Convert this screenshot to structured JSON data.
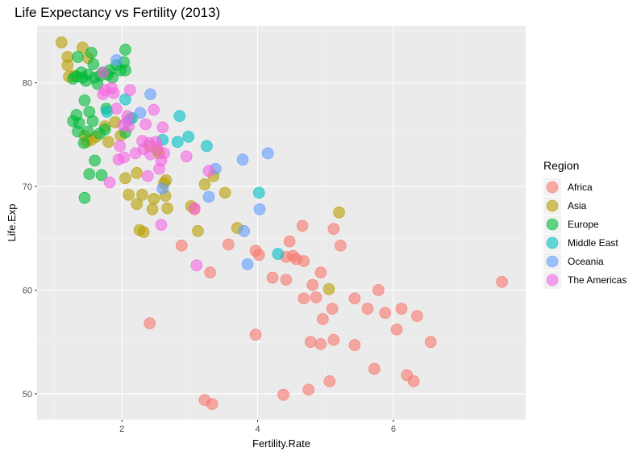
{
  "chart_data": {
    "type": "scatter",
    "title": "Life Expectancy vs Fertility (2013)",
    "xlabel": "Fertility.Rate",
    "ylabel": "Life.Exp",
    "xlim": [
      0.75,
      7.95
    ],
    "ylim": [
      47.5,
      85.5
    ],
    "x_ticks": [
      2,
      4,
      6
    ],
    "x_tick_labels": [
      "2",
      "4",
      "6"
    ],
    "y_ticks": [
      50,
      60,
      70,
      80
    ],
    "y_tick_labels": [
      "50",
      "60",
      "70",
      "80"
    ],
    "grid": true,
    "legend": {
      "title": "Region",
      "placement": "right",
      "entries": [
        "Africa",
        "Asia",
        "Europe",
        "Middle East",
        "Oceania",
        "The Americas"
      ]
    },
    "series": [
      {
        "name": "Africa",
        "color": "#F8766D",
        "points": [
          [
            7.6,
            60.8
          ],
          [
            6.55,
            55.0
          ],
          [
            6.3,
            51.2
          ],
          [
            6.35,
            57.5
          ],
          [
            6.2,
            51.8
          ],
          [
            6.12,
            58.2
          ],
          [
            6.05,
            56.2
          ],
          [
            5.88,
            57.8
          ],
          [
            5.72,
            52.4
          ],
          [
            5.78,
            60.0
          ],
          [
            5.62,
            58.2
          ],
          [
            5.43,
            59.2
          ],
          [
            5.43,
            54.7
          ],
          [
            5.22,
            64.3
          ],
          [
            5.12,
            65.9
          ],
          [
            5.12,
            55.2
          ],
          [
            5.1,
            58.2
          ],
          [
            5.06,
            51.2
          ],
          [
            4.96,
            57.2
          ],
          [
            4.93,
            61.7
          ],
          [
            4.93,
            54.8
          ],
          [
            4.86,
            59.3
          ],
          [
            4.81,
            60.5
          ],
          [
            4.78,
            55.0
          ],
          [
            4.75,
            50.4
          ],
          [
            4.68,
            59.2
          ],
          [
            4.68,
            62.8
          ],
          [
            4.66,
            66.2
          ],
          [
            4.57,
            63.0
          ],
          [
            4.52,
            63.3
          ],
          [
            4.47,
            64.7
          ],
          [
            4.42,
            63.2
          ],
          [
            4.42,
            61.0
          ],
          [
            4.38,
            49.9
          ],
          [
            4.22,
            61.2
          ],
          [
            4.02,
            63.4
          ],
          [
            3.97,
            55.7
          ],
          [
            3.97,
            63.8
          ],
          [
            3.57,
            64.4
          ],
          [
            3.33,
            49.0
          ],
          [
            3.3,
            61.7
          ],
          [
            3.22,
            49.4
          ],
          [
            3.07,
            67.8
          ],
          [
            2.88,
            64.3
          ],
          [
            2.41,
            56.8
          ]
        ]
      },
      {
        "name": "Asia",
        "color": "#B79F00",
        "points": [
          [
            1.11,
            83.9
          ],
          [
            1.2,
            82.5
          ],
          [
            1.2,
            81.7
          ],
          [
            1.22,
            80.6
          ],
          [
            1.3,
            80.7
          ],
          [
            1.42,
            83.4
          ],
          [
            1.5,
            82.4
          ],
          [
            1.55,
            74.5
          ],
          [
            1.48,
            74.3
          ],
          [
            1.45,
            74.9
          ],
          [
            1.62,
            74.8
          ],
          [
            1.75,
            75.8
          ],
          [
            1.8,
            74.3
          ],
          [
            1.9,
            76.2
          ],
          [
            1.98,
            74.9
          ],
          [
            2.05,
            70.8
          ],
          [
            2.1,
            69.2
          ],
          [
            2.12,
            76.5
          ],
          [
            2.22,
            71.3
          ],
          [
            2.22,
            68.3
          ],
          [
            2.26,
            65.8
          ],
          [
            2.3,
            69.2
          ],
          [
            2.32,
            65.6
          ],
          [
            2.4,
            73.9
          ],
          [
            2.45,
            67.8
          ],
          [
            2.47,
            68.8
          ],
          [
            2.52,
            73.5
          ],
          [
            2.55,
            73.2
          ],
          [
            2.62,
            70.3
          ],
          [
            2.64,
            69.1
          ],
          [
            2.65,
            70.6
          ],
          [
            2.67,
            67.9
          ],
          [
            3.02,
            68.1
          ],
          [
            3.12,
            65.7
          ],
          [
            3.22,
            70.2
          ],
          [
            3.35,
            71.0
          ],
          [
            3.52,
            69.4
          ],
          [
            3.7,
            66.0
          ],
          [
            5.05,
            60.1
          ],
          [
            5.2,
            67.5
          ]
        ]
      },
      {
        "name": "Europe",
        "color": "#00BA38",
        "points": [
          [
            1.28,
            80.4
          ],
          [
            1.28,
            76.3
          ],
          [
            1.33,
            80.6
          ],
          [
            1.33,
            76.9
          ],
          [
            1.35,
            75.3
          ],
          [
            1.37,
            76.1
          ],
          [
            1.35,
            82.5
          ],
          [
            1.4,
            81.0
          ],
          [
            1.42,
            80.5
          ],
          [
            1.44,
            74.2
          ],
          [
            1.45,
            78.3
          ],
          [
            1.45,
            68.9
          ],
          [
            1.47,
            80.2
          ],
          [
            1.5,
            80.8
          ],
          [
            1.5,
            75.3
          ],
          [
            1.52,
            77.2
          ],
          [
            1.52,
            71.2
          ],
          [
            1.55,
            82.9
          ],
          [
            1.57,
            76.3
          ],
          [
            1.58,
            81.8
          ],
          [
            1.6,
            80.5
          ],
          [
            1.6,
            72.5
          ],
          [
            1.64,
            79.9
          ],
          [
            1.67,
            75.1
          ],
          [
            1.68,
            80.7
          ],
          [
            1.7,
            71.1
          ],
          [
            1.72,
            81.0
          ],
          [
            1.75,
            75.5
          ],
          [
            1.77,
            77.5
          ],
          [
            1.79,
            80.8
          ],
          [
            1.82,
            81.2
          ],
          [
            1.86,
            80.5
          ],
          [
            1.92,
            81.7
          ],
          [
            1.98,
            81.2
          ],
          [
            2.03,
            82.0
          ],
          [
            2.05,
            81.2
          ],
          [
            2.05,
            83.2
          ],
          [
            2.05,
            75.2
          ]
        ]
      },
      {
        "name": "Middle East",
        "color": "#00BFC4",
        "points": [
          [
            1.78,
            77.2
          ],
          [
            2.05,
            78.4
          ],
          [
            2.15,
            76.6
          ],
          [
            2.6,
            74.5
          ],
          [
            2.82,
            74.3
          ],
          [
            2.85,
            76.8
          ],
          [
            2.98,
            74.8
          ],
          [
            3.25,
            73.9
          ],
          [
            4.02,
            69.4
          ],
          [
            4.3,
            63.5
          ]
        ]
      },
      {
        "name": "Oceania",
        "color": "#619CFF",
        "points": [
          [
            1.92,
            82.2
          ],
          [
            2.08,
            76.3
          ],
          [
            2.27,
            77.1
          ],
          [
            2.42,
            78.9
          ],
          [
            2.6,
            69.8
          ],
          [
            3.28,
            69.0
          ],
          [
            3.38,
            71.7
          ],
          [
            3.78,
            72.6
          ],
          [
            3.8,
            65.7
          ],
          [
            3.85,
            62.5
          ],
          [
            4.03,
            67.8
          ],
          [
            4.15,
            73.2
          ]
        ]
      },
      {
        "name": "The Americas",
        "color": "#F564E3",
        "points": [
          [
            1.72,
            81.0
          ],
          [
            1.75,
            79.3
          ],
          [
            1.72,
            78.9
          ],
          [
            1.82,
            70.4
          ],
          [
            1.85,
            79.5
          ],
          [
            1.88,
            79.0
          ],
          [
            1.92,
            77.5
          ],
          [
            1.95,
            72.6
          ],
          [
            1.97,
            73.9
          ],
          [
            2.02,
            75.9
          ],
          [
            2.03,
            72.8
          ],
          [
            2.08,
            76.8
          ],
          [
            2.1,
            75.8
          ],
          [
            2.12,
            79.3
          ],
          [
            2.2,
            73.2
          ],
          [
            2.3,
            74.4
          ],
          [
            2.32,
            73.6
          ],
          [
            2.35,
            76.0
          ],
          [
            2.38,
            71.0
          ],
          [
            2.4,
            74.2
          ],
          [
            2.42,
            73.1
          ],
          [
            2.47,
            77.4
          ],
          [
            2.5,
            74.3
          ],
          [
            2.52,
            73.8
          ],
          [
            2.55,
            71.7
          ],
          [
            2.58,
            72.5
          ],
          [
            2.58,
            66.3
          ],
          [
            2.6,
            75.7
          ],
          [
            2.62,
            73.2
          ],
          [
            2.95,
            72.9
          ],
          [
            3.07,
            67.9
          ],
          [
            3.1,
            62.4
          ],
          [
            3.28,
            71.5
          ]
        ]
      }
    ]
  }
}
